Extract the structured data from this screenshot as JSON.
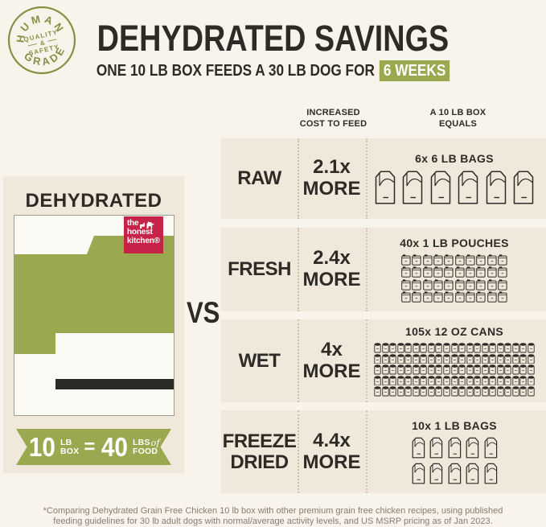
{
  "colors": {
    "cream_bg": "#f9f4eb",
    "panel_beige": "#f0e8da",
    "olive_green": "#9aa84f",
    "badge_olive": "#849144",
    "charcoal": "#2e2b27",
    "brand_red": "#c72349",
    "footnote_gray": "#837d70"
  },
  "badge": {
    "arc_top": "HUMAN",
    "arc_bottom": "GRADE",
    "center_line1": "QUALITY",
    "center_amp": "&",
    "center_line2": "SAFETY"
  },
  "header": {
    "title": "DEHYDRATED SAVINGS",
    "subtitle": "ONE 10 LB BOX FEEDS A 30 LB DOG FOR",
    "subtitle_highlight": "6 WEEKS"
  },
  "left_panel": {
    "heading": "DEHYDRATED",
    "logo": {
      "word1": "the",
      "word2": "honest",
      "word3": "kitchen®"
    },
    "ribbon": {
      "qty1": "10",
      "unit1_top": "LB",
      "unit1_bottom": "BOX",
      "equals": "=",
      "qty2": "40",
      "unit2_top": "LBS",
      "unit2_of": "of",
      "unit2_bottom": "FOOD"
    }
  },
  "versus": "VS",
  "comparison_table": {
    "columns": [
      {
        "line1": "INCREASED",
        "line2": "COST TO FEED"
      },
      {
        "line1": "A 10 LB BOX",
        "line2": "EQUALS"
      }
    ],
    "rows": [
      {
        "label": "RAW",
        "cost": "2.1x",
        "cost_suffix": "MORE",
        "equivalent": "6x 6 LB BAGS",
        "icon": "bag",
        "icon_count": 6,
        "icons_per_row": 6
      },
      {
        "label": "FRESH",
        "cost": "2.4x",
        "cost_suffix": "MORE",
        "equivalent": "40x 1 LB POUCHES",
        "icon": "pouch",
        "icon_count": 40,
        "icons_per_row": 10
      },
      {
        "label": "WET",
        "cost": "4x",
        "cost_suffix": "MORE",
        "equivalent": "105x 12 OZ CANS",
        "icon": "can",
        "icon_count": 105,
        "icons_per_row": 21
      },
      {
        "label": "FREEZE DRIED",
        "cost": "4.4x",
        "cost_suffix": "MORE",
        "equivalent": "10x 1 LB BAGS",
        "icon": "bag-small",
        "icon_count": 10,
        "icons_per_row": 5
      }
    ]
  },
  "chart_data": {
    "type": "table",
    "title": "Dehydrated Savings",
    "subtitle": "One 10 lb box feeds a 30 lb dog for 6 weeks",
    "categories": [
      "RAW",
      "FRESH",
      "WET",
      "FREEZE DRIED"
    ],
    "series": [
      {
        "name": "Increased cost to feed (multiplier)",
        "values": [
          2.1,
          2.4,
          4,
          4.4
        ]
      },
      {
        "name": "A 10 lb box equals (unit count)",
        "values": [
          6,
          40,
          105,
          10
        ]
      }
    ],
    "units": [
      "6 lb bags",
      "1 lb pouches",
      "12 oz cans",
      "1 lb bags"
    ],
    "dehydrated_equivalence": "10 lb box = 40 lbs of food"
  },
  "footnote": {
    "line1": "*Comparing Dehydrated Grain Free Chicken 10 lb box with other premium grain free chicken recipes, using published",
    "line2": "feeding guidelines for 30 lb adult dogs with normal/average activity levels, and US MSRP pricing as of Jan 2023."
  }
}
